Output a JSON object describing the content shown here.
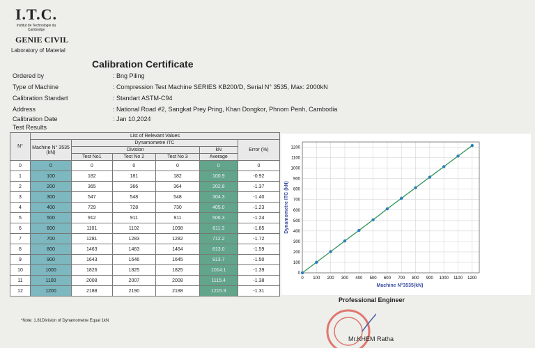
{
  "header": {
    "logo": "I.T.C.",
    "institute": "Institut de Technologie du Cambodge",
    "department": "GENIE CIVIL",
    "lab": "Laboratory of Material"
  },
  "title": "Calibration Certificate",
  "fields": [
    {
      "label": "Ordered by",
      "value": ": Bng Piling"
    },
    {
      "label": "Type of Machine",
      "value": ": Compression Test Machine SERIES KB200/D, Serial N° 3535, Max: 2000kN"
    },
    {
      "label": "Calibration Standart",
      "value": ": Standart ASTM-C94"
    },
    {
      "label": "Address",
      "value": ": National Road #2, Sangkat Prey Pring, Khan Dongkor, Phnom Penh, Cambodia"
    },
    {
      "label": "Calibration Date",
      "value": ": Jan 10,2024"
    }
  ],
  "section": "Test Results",
  "table": {
    "caption": "List of Relevant Values",
    "headers": {
      "no": "N°",
      "machine": "Machine N° 3535 (kN)",
      "dynamometre": "Dynamometre ITC",
      "division": "Division",
      "kn": "kN",
      "error": "Error (%)",
      "test1": "Test No1",
      "test2": "Test No 2",
      "test3": "Test No 3",
      "average": "Average"
    },
    "rows": [
      [
        "0",
        "0",
        "0",
        "0",
        "0",
        "0",
        "0"
      ],
      [
        "1",
        "100",
        "182",
        "181",
        "182",
        "100.9",
        "-0.92"
      ],
      [
        "2",
        "200",
        "365",
        "366",
        "364",
        "202.8",
        "-1.37"
      ],
      [
        "3",
        "300",
        "547",
        "548",
        "548",
        "304.3",
        "-1.40"
      ],
      [
        "4",
        "400",
        "729",
        "728",
        "730",
        "405.0",
        "-1.23"
      ],
      [
        "5",
        "500",
        "912",
        "911",
        "911",
        "506.3",
        "-1.24"
      ],
      [
        "6",
        "600",
        "1101",
        "1102",
        "1098",
        "611.3",
        "-1.85"
      ],
      [
        "7",
        "700",
        "1281",
        "1283",
        "1282",
        "712.2",
        "-1.72"
      ],
      [
        "8",
        "800",
        "1463",
        "1463",
        "1464",
        "813.0",
        "-1.59"
      ],
      [
        "9",
        "900",
        "1643",
        "1646",
        "1645",
        "913.7",
        "-1.50"
      ],
      [
        "10",
        "1000",
        "1826",
        "1825",
        "1825",
        "1014.1",
        "-1.39"
      ],
      [
        "11",
        "1100",
        "2008",
        "2007",
        "2008",
        "1115.4",
        "-1.38"
      ],
      [
        "12",
        "1200",
        "2188",
        "2190",
        "2188",
        "1215.9",
        "-1.31"
      ]
    ]
  },
  "chart_data": {
    "type": "line",
    "x_label": "Machine N°3535(kN)",
    "y_label": "Dynamometre ITC (kN)",
    "x": [
      0,
      100,
      200,
      300,
      400,
      500,
      600,
      700,
      800,
      900,
      1000,
      1100,
      1200
    ],
    "series": [
      {
        "color": "#3a9a62",
        "marker_color": "#2e7fb8",
        "values": [
          0,
          100.9,
          202.8,
          304.3,
          405.0,
          506.3,
          611.3,
          712.2,
          813.0,
          913.7,
          1014.1,
          1115.4,
          1215.9
        ]
      }
    ],
    "xlim": [
      0,
      1250
    ],
    "ylim": [
      0,
      1250
    ],
    "xticks": [
      0,
      100,
      200,
      300,
      400,
      500,
      600,
      700,
      800,
      900,
      1000,
      1100,
      1200
    ],
    "yticks": [
      0,
      100,
      200,
      300,
      400,
      500,
      600,
      700,
      800,
      900,
      1000,
      1100,
      1200
    ],
    "grid": true
  },
  "footer": {
    "engineer_title": "Professional Engineer",
    "engineer_name": "Mr.KHEM Ratha",
    "note": "*Note: 1.81Division of Dynamometre Equal 1kN"
  }
}
